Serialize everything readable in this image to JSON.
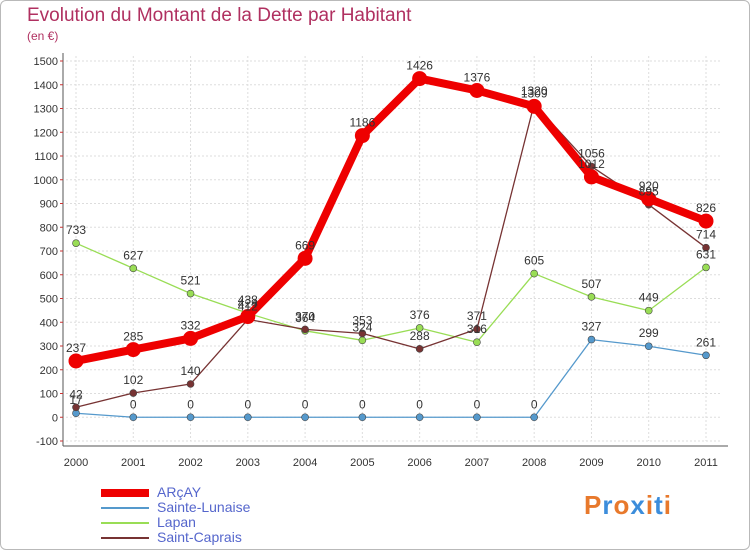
{
  "title": "Evolution du Montant de la Dette par Habitant",
  "subtitle": "(en €)",
  "logo": {
    "text": "Proxiti",
    "colors": [
      "#e8792c",
      "#3c8ddb",
      "#e8792c",
      "#3c8ddb",
      "#e8792c",
      "#3c8ddb",
      "#e8792c"
    ]
  },
  "chart_data": {
    "type": "line",
    "title": "Evolution du Montant de la Dette par Habitant",
    "ylabel": "(en €)",
    "xlabel": "",
    "ylim": [
      -100,
      1500
    ],
    "yticks": [
      -100,
      0,
      100,
      200,
      300,
      400,
      500,
      600,
      700,
      800,
      900,
      1000,
      1100,
      1200,
      1300,
      1400,
      1500
    ],
    "categories": [
      "2000",
      "2001",
      "2002",
      "2003",
      "2004",
      "2005",
      "2006",
      "2007",
      "2008",
      "2009",
      "2010",
      "2011"
    ],
    "grid": true,
    "legend_position": "bottom-left",
    "series": [
      {
        "name": "Lapan",
        "color": "#99dd55",
        "values": [
          733,
          627,
          521,
          438,
          364,
          324,
          376,
          316,
          605,
          507,
          449,
          631
        ]
      },
      {
        "name": "Sainte-Lunaise",
        "color": "#5599cc",
        "values": [
          17,
          0,
          0,
          0,
          0,
          0,
          0,
          0,
          0,
          327,
          299,
          261
        ]
      },
      {
        "name": "Saint-Caprais",
        "color": "#773333",
        "values": [
          42,
          102,
          140,
          412,
          370,
          353,
          288,
          371,
          1320,
          1056,
          895,
          714
        ]
      },
      {
        "name": "ARçAY",
        "color": "#ee0000",
        "values": [
          237,
          285,
          332,
          424,
          669,
          1186,
          1426,
          1376,
          1309,
          1012,
          920,
          826
        ]
      }
    ],
    "data_labels": [
      {
        "series": "Lapan",
        "labels": [
          "733",
          "627",
          "521",
          "438",
          "364",
          "324",
          "376",
          "316",
          "605",
          "507",
          "449",
          "631"
        ]
      },
      {
        "series": "Sainte-Lunaise",
        "labels": [
          "17",
          "0",
          "0",
          "0",
          "0",
          "0",
          "0",
          "0",
          "0",
          "327",
          "299",
          "261"
        ]
      },
      {
        "series": "Saint-Caprais",
        "labels": [
          "42",
          "102",
          "140",
          "412",
          "370",
          "353",
          "288",
          "371",
          "1320",
          "1056",
          "895",
          "714"
        ]
      },
      {
        "series": "ARçAY",
        "labels": [
          "237",
          "285",
          "332",
          "424",
          "669",
          "1186",
          "1426",
          "1376",
          "1309",
          "1012",
          "920",
          "826"
        ]
      }
    ],
    "legend": [
      "ARçAY",
      "Sainte-Lunaise",
      "Lapan",
      "Saint-Caprais"
    ]
  }
}
